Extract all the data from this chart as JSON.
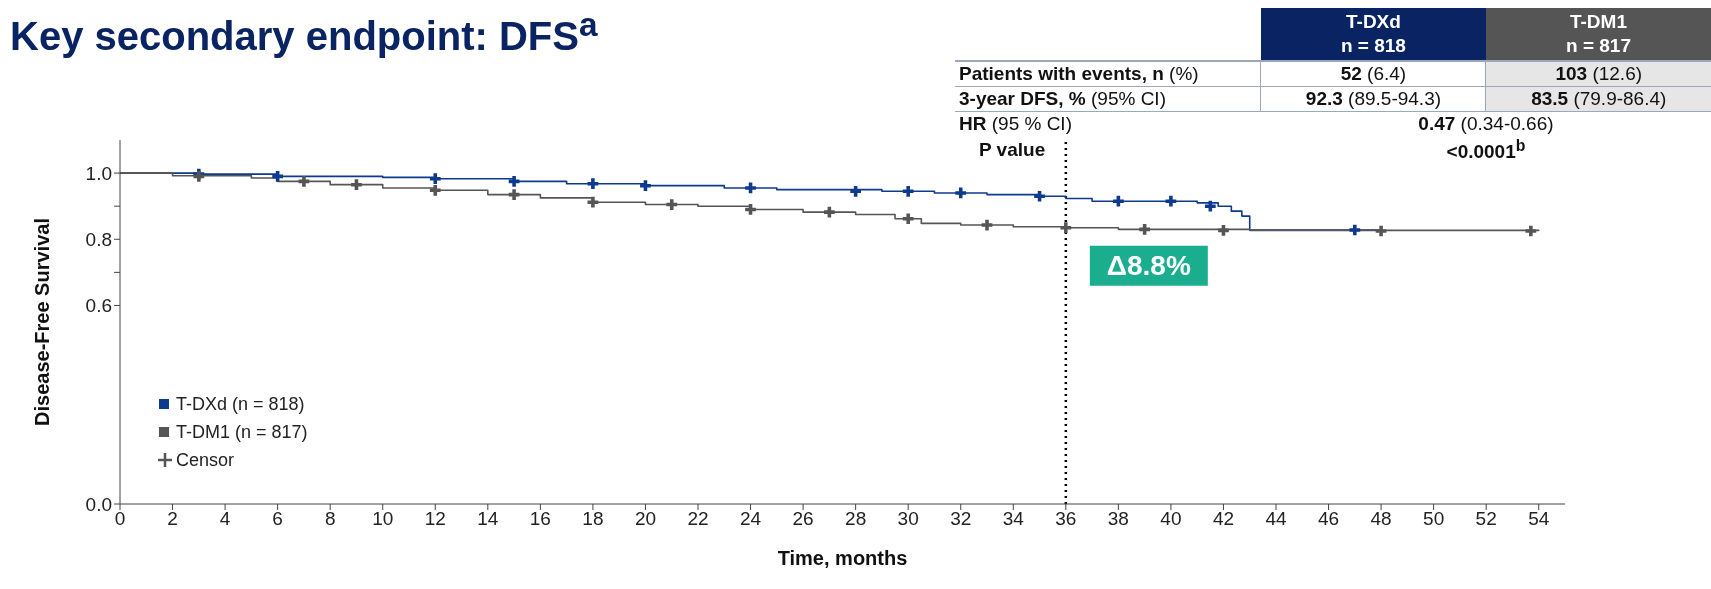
{
  "chart_data": [
    {
      "type": "step",
      "title": "Key secondary endpoint: DFS$^{a}$",
      "xlabel": "Time, months",
      "ylabel": "Disease-Free Survival",
      "xlim": [
        0,
        55
      ],
      "xticks": [
        0,
        2,
        4,
        6,
        8,
        10,
        12,
        14,
        16,
        18,
        20,
        22,
        24,
        26,
        28,
        30,
        32,
        34,
        36,
        38,
        40,
        42,
        44,
        46,
        48,
        50,
        52,
        54
      ],
      "ylim": [
        0,
        1.1
      ],
      "yticks": [
        {
          "value": 0,
          "label": "0.0"
        },
        0.6,
        {
          "value": 0.7,
          "label": null
        },
        0.8,
        {
          "value": 0.9,
          "label": null
        },
        {
          "value": 1.0,
          "label": "1.0"
        }
      ],
      "legend": "bottom left",
      "marker": "none",
      "ref_lines": [
        {
          "axis": "x",
          "value": 36,
          "label": null,
          "color": "#000000",
          "line_style": "dotted"
        }
      ],
      "annotations": [
        {
          "text": "Δ8.8%",
          "x": 36,
          "y": 0.72
        }
      ],
      "series": [
        {
          "name": "T-DXd (n = 818)",
          "type": "step",
          "color": "#0d3a8c",
          "x": [
            0,
            3,
            6,
            10,
            12,
            15,
            17,
            20,
            23,
            25,
            29,
            31,
            33,
            35,
            36,
            37,
            41,
            41.8,
            42.3,
            42.7,
            43,
            48
          ],
          "values": [
            1.0,
            0.997,
            0.99,
            0.987,
            0.983,
            0.975,
            0.968,
            0.962,
            0.955,
            0.95,
            0.945,
            0.94,
            0.935,
            0.93,
            0.923,
            0.915,
            0.91,
            0.9,
            0.885,
            0.87,
            0.828,
            0.828
          ]
        },
        {
          "name": "T-DM1 (n = 817)",
          "type": "step",
          "color": "#555555",
          "x": [
            0,
            2,
            5,
            6,
            8,
            10,
            12,
            14,
            16,
            18,
            20,
            22,
            24,
            26,
            28,
            29.5,
            30.5,
            32,
            34,
            36,
            38,
            43,
            54
          ],
          "values": [
            1.0,
            0.992,
            0.985,
            0.975,
            0.965,
            0.955,
            0.948,
            0.935,
            0.925,
            0.912,
            0.905,
            0.9,
            0.89,
            0.882,
            0.875,
            0.862,
            0.848,
            0.843,
            0.838,
            0.835,
            0.83,
            0.827,
            0.825
          ]
        },
        {
          "name": "Censor",
          "type": "scatter",
          "marker": "cross",
          "color": "#555555",
          "x": [
            3,
            6,
            12,
            15,
            18,
            20,
            24,
            28,
            30,
            32,
            35,
            38,
            40,
            41.5,
            47,
            3,
            7,
            9,
            12,
            15,
            18,
            21,
            24,
            27,
            30,
            33,
            36,
            39,
            42,
            48,
            53.7
          ],
          "values": [
            0.997,
            0.99,
            0.983,
            0.975,
            0.968,
            0.962,
            0.955,
            0.945,
            0.945,
            0.94,
            0.93,
            0.915,
            0.915,
            0.9,
            0.828,
            0.99,
            0.975,
            0.965,
            0.948,
            0.935,
            0.912,
            0.905,
            0.89,
            0.882,
            0.862,
            0.843,
            0.835,
            0.83,
            0.827,
            0.825,
            0.825
          ],
          "colors": [
            "#0d3a8c",
            "#0d3a8c",
            "#0d3a8c",
            "#0d3a8c",
            "#0d3a8c",
            "#0d3a8c",
            "#0d3a8c",
            "#0d3a8c",
            "#0d3a8c",
            "#0d3a8c",
            "#0d3a8c",
            "#0d3a8c",
            "#0d3a8c",
            "#0d3a8c",
            "#0d3a8c",
            "#555555",
            "#555555",
            "#555555",
            "#555555",
            "#555555",
            "#555555",
            "#555555",
            "#555555",
            "#555555",
            "#555555",
            "#555555",
            "#555555",
            "#555555",
            "#555555",
            "#555555",
            "#555555"
          ]
        }
      ]
    },
    {
      "type": "other",
      "categories": [
        "T-DXd\nn = 818",
        "T-DM1\nn = 817"
      ],
      "colors": [
        "#0a2463",
        "#555555"
      ],
      "y_categories": [
        "Patients with events, n (%)",
        "3-year DFS, % (95% CI)",
        "HR (95 % CI)",
        "P value"
      ],
      "cell_labels": [
        [
          "52 (6.4)",
          "103 (12.6)"
        ],
        [
          "92.3 (89.5-94.3)",
          "83.5 (79.9-86.4)"
        ],
        [
          "0.47 (0.34-0.66)",
          null
        ],
        [
          "<0.0001$^{b}$",
          null
        ]
      ]
    }
  ]
}
